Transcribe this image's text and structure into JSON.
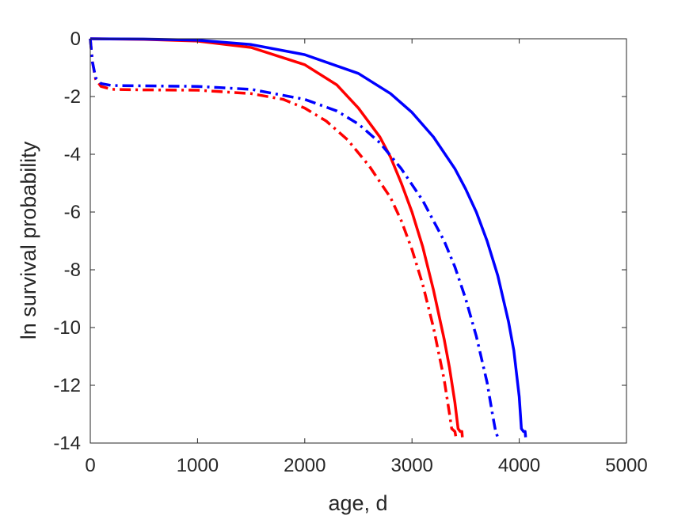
{
  "chart_data": {
    "type": "line",
    "title": "",
    "xlabel": "age, d",
    "ylabel": "ln survival probability",
    "xlim": [
      0,
      5000
    ],
    "ylim": [
      -14,
      0
    ],
    "xticks": [
      0,
      1000,
      2000,
      3000,
      4000,
      5000
    ],
    "yticks": [
      0,
      -2,
      -4,
      -6,
      -8,
      -10,
      -12,
      -14
    ],
    "xtick_labels": [
      "0",
      "1000",
      "2000",
      "3000",
      "4000",
      "5000"
    ],
    "ytick_labels": [
      "0",
      "-2",
      "-4",
      "-6",
      "-8",
      "-10",
      "-12",
      "-14"
    ],
    "grid": false,
    "box": true,
    "series": [
      {
        "color": "#ff0000",
        "style": "solid",
        "points": [
          [
            0,
            0
          ],
          [
            500,
            -0.02
          ],
          [
            1000,
            -0.08
          ],
          [
            1500,
            -0.3
          ],
          [
            2000,
            -0.9
          ],
          [
            2300,
            -1.6
          ],
          [
            2500,
            -2.4
          ],
          [
            2700,
            -3.4
          ],
          [
            2800,
            -4.1
          ],
          [
            2900,
            -5.0
          ],
          [
            3000,
            -6.0
          ],
          [
            3100,
            -7.2
          ],
          [
            3200,
            -8.7
          ],
          [
            3300,
            -10.4
          ],
          [
            3350,
            -11.4
          ],
          [
            3400,
            -12.6
          ],
          [
            3430,
            -13.5
          ],
          [
            3450,
            -13.6
          ],
          [
            3465,
            -13.6
          ],
          [
            3470,
            -13.8
          ]
        ]
      },
      {
        "color": "#0000ff",
        "style": "solid",
        "points": [
          [
            0,
            0
          ],
          [
            500,
            -0.01
          ],
          [
            1000,
            -0.05
          ],
          [
            1500,
            -0.2
          ],
          [
            2000,
            -0.55
          ],
          [
            2500,
            -1.2
          ],
          [
            2800,
            -1.9
          ],
          [
            3000,
            -2.55
          ],
          [
            3200,
            -3.4
          ],
          [
            3400,
            -4.5
          ],
          [
            3500,
            -5.2
          ],
          [
            3600,
            -6.0
          ],
          [
            3700,
            -7.0
          ],
          [
            3800,
            -8.2
          ],
          [
            3900,
            -9.8
          ],
          [
            3950,
            -10.8
          ],
          [
            4000,
            -12.4
          ],
          [
            4020,
            -13.5
          ],
          [
            4040,
            -13.6
          ],
          [
            4055,
            -13.6
          ],
          [
            4060,
            -13.8
          ]
        ]
      },
      {
        "color": "#ff0000",
        "style": "dashdot",
        "points": [
          [
            0,
            0
          ],
          [
            20,
            -0.8
          ],
          [
            50,
            -1.4
          ],
          [
            100,
            -1.65
          ],
          [
            200,
            -1.75
          ],
          [
            500,
            -1.77
          ],
          [
            1000,
            -1.78
          ],
          [
            1500,
            -1.9
          ],
          [
            1800,
            -2.1
          ],
          [
            2000,
            -2.4
          ],
          [
            2200,
            -2.85
          ],
          [
            2400,
            -3.5
          ],
          [
            2600,
            -4.4
          ],
          [
            2800,
            -5.5
          ],
          [
            2900,
            -6.3
          ],
          [
            3000,
            -7.3
          ],
          [
            3100,
            -8.5
          ],
          [
            3200,
            -10.0
          ],
          [
            3300,
            -11.8
          ],
          [
            3350,
            -13.0
          ],
          [
            3370,
            -13.5
          ],
          [
            3400,
            -13.6
          ],
          [
            3410,
            -13.8
          ]
        ]
      },
      {
        "color": "#0000ff",
        "style": "dashdot",
        "points": [
          [
            0,
            0
          ],
          [
            20,
            -0.8
          ],
          [
            50,
            -1.35
          ],
          [
            100,
            -1.55
          ],
          [
            200,
            -1.62
          ],
          [
            500,
            -1.63
          ],
          [
            1000,
            -1.65
          ],
          [
            1500,
            -1.75
          ],
          [
            2000,
            -2.1
          ],
          [
            2300,
            -2.5
          ],
          [
            2500,
            -2.95
          ],
          [
            2700,
            -3.6
          ],
          [
            2900,
            -4.5
          ],
          [
            3100,
            -5.6
          ],
          [
            3300,
            -7.0
          ],
          [
            3400,
            -7.9
          ],
          [
            3500,
            -9.0
          ],
          [
            3600,
            -10.3
          ],
          [
            3700,
            -11.9
          ],
          [
            3750,
            -13.0
          ],
          [
            3780,
            -13.6
          ],
          [
            3800,
            -13.8
          ]
        ]
      }
    ]
  }
}
